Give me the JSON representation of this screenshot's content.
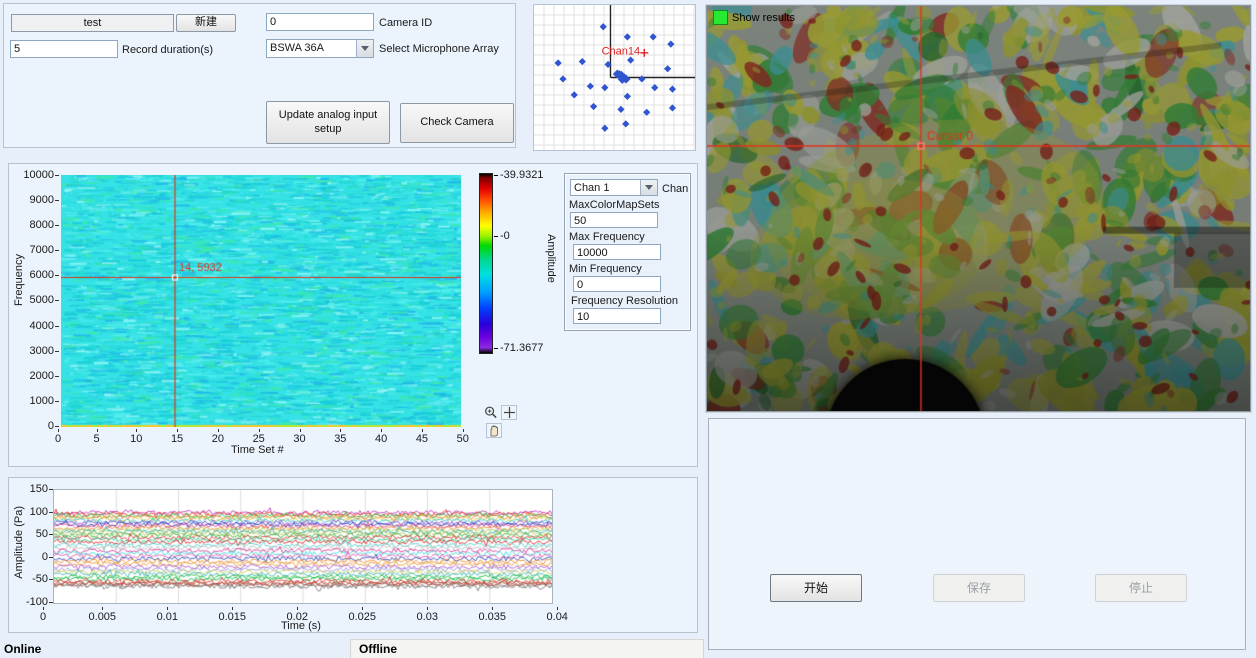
{
  "settings_panel": {
    "project_name_value": "test",
    "new_button_label": "新建",
    "record_duration_value": "5",
    "record_duration_label": "Record duration(s)",
    "camera_id_value": "0",
    "camera_id_label": "Camera ID",
    "mic_array_value": "BSWA 36A",
    "mic_array_label": "Select Microphone Array",
    "update_button_label": "Update analog input setup",
    "check_camera_label": "Check Camera"
  },
  "analysis_controls": {
    "chan_value": "Chan 1",
    "chan_label": "Chan",
    "fields": [
      {
        "label": "MaxColorMapSets",
        "value": "50"
      },
      {
        "label": "Max Frequency",
        "value": "10000"
      },
      {
        "label": "Min Frequency",
        "value": "0"
      },
      {
        "label": "Frequency Resolution",
        "value": "10"
      }
    ]
  },
  "camera_view": {
    "show_results_label": "Show results",
    "cursor_label": "Cursor 0"
  },
  "actions": {
    "start_label": "开始",
    "save_label": "保存",
    "stop_label": "停止"
  },
  "status_tabs": {
    "online": "Online",
    "offline": "Offline"
  },
  "colors": {
    "accent_blue": "#2f55cf",
    "cursor_red": "#e0321e",
    "led_green": "#27e833",
    "spectro_cyan": "#35e2e6"
  },
  "chart_data": [
    {
      "id": "mic_array",
      "type": "scatter",
      "title": "",
      "marker": "diamond",
      "point_color": "#2f55cf",
      "highlight_label": "Chan14",
      "highlight_point": [
        0.685,
        0.33
      ],
      "label_anchor": [
        0.42,
        0.315
      ],
      "points": [
        [
          0.43,
          0.15
        ],
        [
          0.58,
          0.22
        ],
        [
          0.74,
          0.22
        ],
        [
          0.85,
          0.27
        ],
        [
          0.15,
          0.4
        ],
        [
          0.3,
          0.39
        ],
        [
          0.46,
          0.41
        ],
        [
          0.6,
          0.38
        ],
        [
          0.83,
          0.44
        ],
        [
          0.18,
          0.51
        ],
        [
          0.67,
          0.51
        ],
        [
          0.86,
          0.58
        ],
        [
          0.35,
          0.56
        ],
        [
          0.44,
          0.57
        ],
        [
          0.25,
          0.62
        ],
        [
          0.58,
          0.63
        ],
        [
          0.75,
          0.57
        ],
        [
          0.37,
          0.7
        ],
        [
          0.54,
          0.72
        ],
        [
          0.7,
          0.74
        ],
        [
          0.86,
          0.71
        ],
        [
          0.44,
          0.85
        ],
        [
          0.57,
          0.82
        ]
      ],
      "cluster_center": [
        0.545,
        0.5
      ]
    },
    {
      "id": "spectrogram",
      "type": "heatmap",
      "xlabel": "Time Set #",
      "ylabel": "Frequency",
      "xticks": [
        "0",
        "5",
        "10",
        "15",
        "20",
        "25",
        "30",
        "35",
        "40",
        "45",
        "50"
      ],
      "yticks": [
        "10000",
        "9000",
        "8000",
        "7000",
        "6000",
        "5000",
        "4000",
        "3000",
        "2000",
        "1000",
        "0"
      ],
      "xlim": [
        0,
        50
      ],
      "ylim": [
        0,
        10000
      ],
      "cursor": {
        "x": 14,
        "y": 5932,
        "label": "14, 5932"
      },
      "colorbar": {
        "label": "Amplitude",
        "max": "-39.9321",
        "mid": "-0",
        "min": "-71.3677"
      }
    },
    {
      "id": "waveform",
      "type": "line",
      "xlabel": "Time (s)",
      "ylabel": "Amplitude (Pa)",
      "xticks": [
        "0",
        "0.005",
        "0.01",
        "0.015",
        "0.02",
        "0.025",
        "0.03",
        "0.035",
        "0.04"
      ],
      "yticks": [
        "150",
        "100",
        "50",
        "0",
        "-50",
        "-100"
      ],
      "xlim": [
        0,
        0.04
      ],
      "ylim": [
        -100,
        150
      ],
      "trace_amplitude": 5,
      "traces": [
        {
          "base": 100,
          "color": "#c040c0"
        },
        {
          "base": 97,
          "color": "#e03a30"
        },
        {
          "base": 93,
          "color": "#30c050"
        },
        {
          "base": 90,
          "color": "#f08030"
        },
        {
          "base": 86,
          "color": "#d0d050"
        },
        {
          "base": 82,
          "color": "#40c8d8"
        },
        {
          "base": 78,
          "color": "#9050d0"
        },
        {
          "base": 74,
          "color": "#2040c0"
        },
        {
          "base": 70,
          "color": "#e05090"
        },
        {
          "base": 66,
          "color": "#f09040"
        },
        {
          "base": 62,
          "color": "#b0d060"
        },
        {
          "base": 58,
          "color": "#30b0b0"
        },
        {
          "base": 54,
          "color": "#c8c860"
        },
        {
          "base": 50,
          "color": "#40b840"
        },
        {
          "base": 45,
          "color": "#e04040"
        },
        {
          "base": 40,
          "color": "#38c890"
        },
        {
          "base": 35,
          "color": "#e03030"
        },
        {
          "base": 28,
          "color": "#50d0d0"
        },
        {
          "base": 22,
          "color": "#c0c0c0"
        },
        {
          "base": 16,
          "color": "#e040a0"
        },
        {
          "base": 10,
          "color": "#40e0e0"
        },
        {
          "base": 4,
          "color": "#e860b0"
        },
        {
          "base": -2,
          "color": "#3050c0"
        },
        {
          "base": -8,
          "color": "#f09030"
        },
        {
          "base": -14,
          "color": "#e8a040"
        },
        {
          "base": -20,
          "color": "#b060d0"
        },
        {
          "base": -26,
          "color": "#a0a0e0"
        },
        {
          "base": -31,
          "color": "#d0d060"
        },
        {
          "base": -36,
          "color": "#40b8c8"
        },
        {
          "base": -42,
          "color": "#30c040"
        },
        {
          "base": -47,
          "color": "#20c060"
        },
        {
          "base": -52,
          "color": "#e04030"
        },
        {
          "base": -56,
          "color": "#c04030"
        },
        {
          "base": -60,
          "color": "#909090"
        },
        {
          "base": -63,
          "color": "#808080"
        },
        {
          "base": -58,
          "color": "#b05040"
        }
      ]
    }
  ]
}
